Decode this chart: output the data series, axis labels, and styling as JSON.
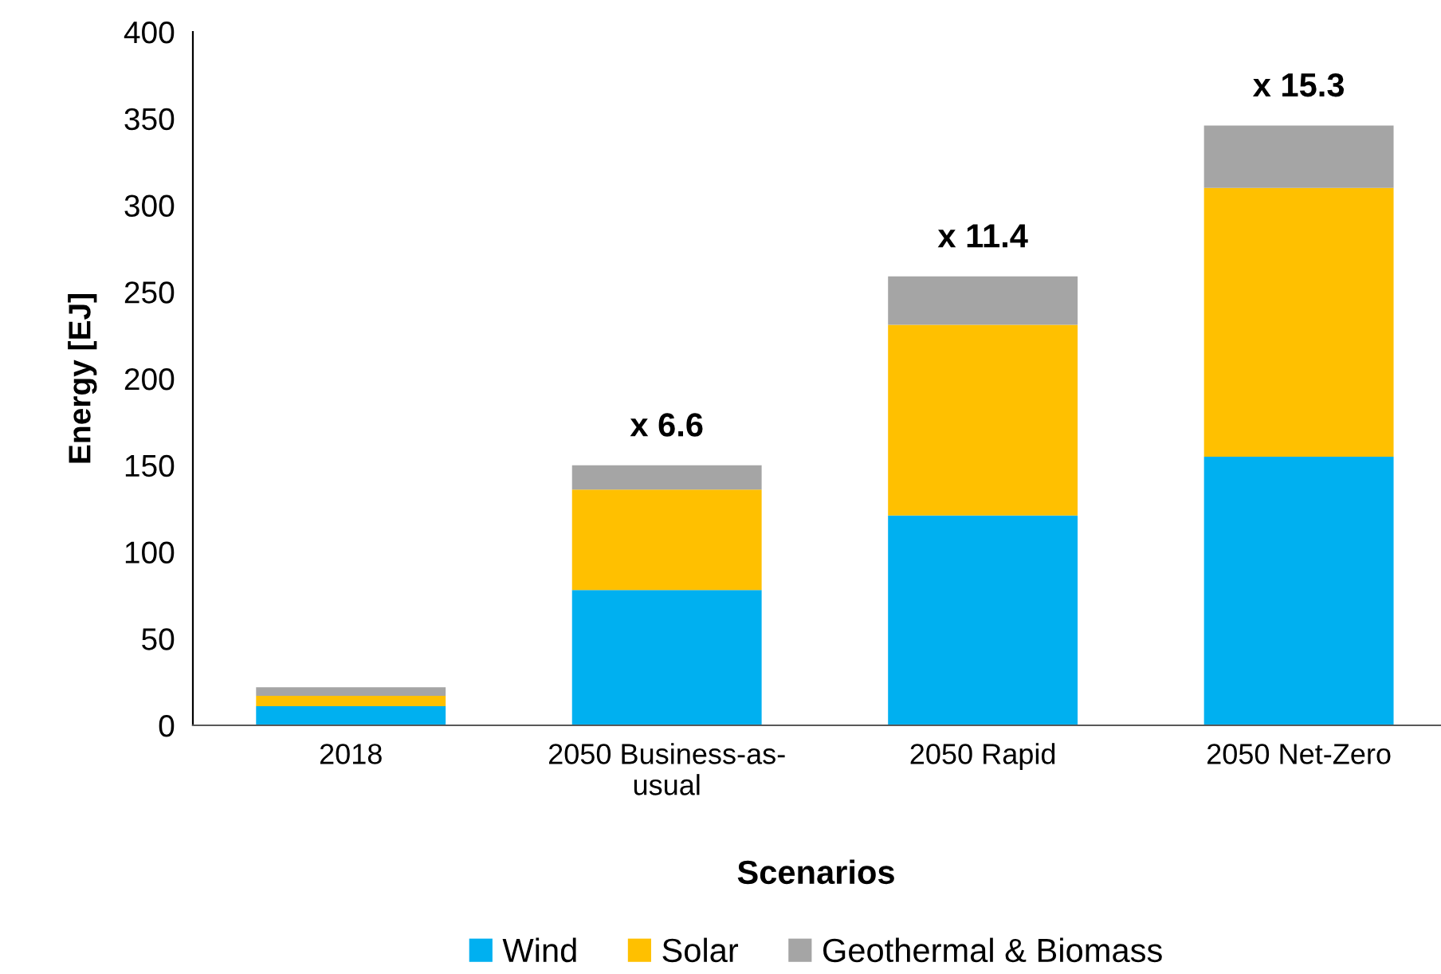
{
  "chart_data": {
    "type": "bar",
    "stacked": true,
    "xlabel": "Scenarios",
    "ylabel": "Energy [EJ]",
    "categories": [
      "2018",
      "2050 Business-as-\nusual",
      "2050 Rapid",
      "2050 Net-Zero"
    ],
    "series": [
      {
        "name": "Wind",
        "color": "#00b0f0",
        "values": [
          11,
          78,
          121,
          155
        ]
      },
      {
        "name": "Solar",
        "color": "#ffc000",
        "values": [
          6,
          58,
          110,
          155
        ]
      },
      {
        "name": "Geothermal & Biomass",
        "color": "#a5a5a5",
        "values": [
          5,
          14,
          28,
          36
        ]
      }
    ],
    "ylim": [
      0,
      400
    ],
    "yticks": [
      0,
      50,
      100,
      150,
      200,
      250,
      300,
      350,
      400
    ],
    "annotations": [
      {
        "text": "x 6.6",
        "x": "2050 Business-as-\nusual",
        "y": 150
      },
      {
        "text": "x 11.4",
        "x": "2050 Rapid",
        "y": 259
      },
      {
        "text": "x 15.3",
        "x": "2050 Net-Zero",
        "y": 346
      }
    ],
    "grid": false,
    "legend": "bottom"
  }
}
